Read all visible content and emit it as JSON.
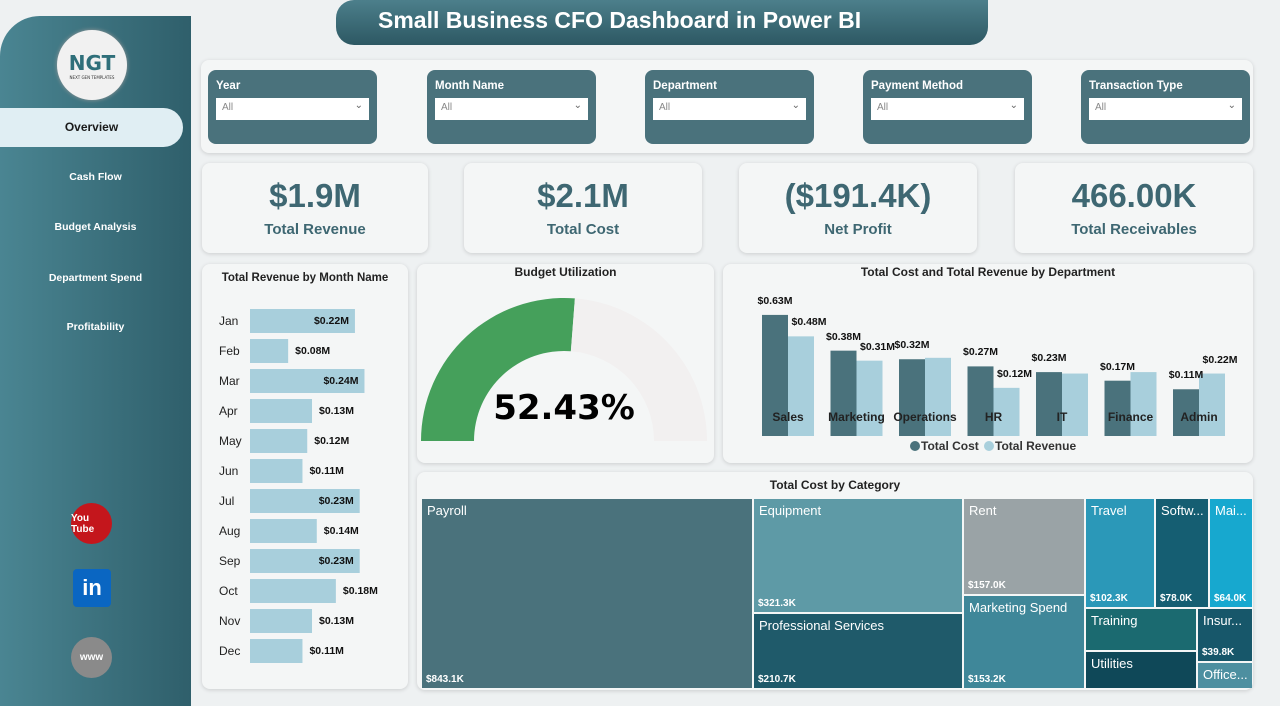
{
  "title": "Small Business CFO Dashboard in Power BI",
  "logo": {
    "text": "NGT",
    "subtext": "NEXT GEN TEMPLATES"
  },
  "nav": [
    {
      "label": "Overview",
      "active": true
    },
    {
      "label": "Cash Flow"
    },
    {
      "label": "Budget Analysis"
    },
    {
      "label": "Department Spend"
    },
    {
      "label": "Profitability"
    }
  ],
  "social": [
    {
      "icon": "youtube-icon",
      "text": "You Tube",
      "color": "#c4161c"
    },
    {
      "icon": "linkedin-icon",
      "text": "in",
      "color": "#0a66c2"
    },
    {
      "icon": "globe-icon",
      "text": "www",
      "color": "#8a8a8a"
    }
  ],
  "slicers": [
    {
      "label": "Year",
      "value": "All"
    },
    {
      "label": "Month Name",
      "value": "All"
    },
    {
      "label": "Department",
      "value": "All"
    },
    {
      "label": "Payment Method",
      "value": "All"
    },
    {
      "label": "Transaction Type",
      "value": "All"
    }
  ],
  "kpis": [
    {
      "value": "$1.9M",
      "label": "Total Revenue"
    },
    {
      "value": "$2.1M",
      "label": "Total Cost"
    },
    {
      "value": "($191.4K)",
      "label": "Net Profit"
    },
    {
      "value": "466.00K",
      "label": "Total Receivables"
    }
  ],
  "colors": {
    "cost": "#4a727c",
    "revenue": "#a8cfdc",
    "gauge_fill": "#45a05b",
    "gauge_bg": "#f2f0f0"
  },
  "chart_data": [
    {
      "type": "bar",
      "orientation": "horizontal",
      "title": "Total Revenue by Month Name",
      "categories": [
        "Jan",
        "Feb",
        "Mar",
        "Apr",
        "May",
        "Jun",
        "Jul",
        "Aug",
        "Sep",
        "Oct",
        "Nov",
        "Dec"
      ],
      "values": [
        0.22,
        0.08,
        0.24,
        0.13,
        0.12,
        0.11,
        0.23,
        0.14,
        0.23,
        0.18,
        0.13,
        0.11
      ],
      "labels": [
        "$0.22M",
        "$0.08M",
        "$0.24M",
        "$0.13M",
        "$0.12M",
        "$0.11M",
        "$0.23M",
        "$0.14M",
        "$0.23M",
        "$0.18M",
        "$0.13M",
        "$0.11M"
      ]
    },
    {
      "type": "gauge",
      "title": "Budget Utilization",
      "value": 52.43,
      "label": "52.43%"
    },
    {
      "type": "bar",
      "title": "Total Cost and Total Revenue by Department",
      "categories": [
        "Sales",
        "Marketing",
        "Operations",
        "HR",
        "IT",
        "Finance",
        "Admin"
      ],
      "series": [
        {
          "name": "Total Cost",
          "values": [
            0.63,
            0.38,
            0.32,
            0.27,
            0.23,
            0.17,
            0.11
          ],
          "labels": [
            "$0.63M",
            "$0.38M",
            "$0.32M",
            "$0.27M",
            "$0.23M",
            "$0.17M",
            "$0.11M"
          ]
        },
        {
          "name": "Total Revenue",
          "values": [
            0.48,
            0.31,
            0.33,
            0.12,
            0.22,
            0.23,
            0.22
          ],
          "labels": [
            "$0.48M",
            "$0.31M",
            "",
            "$0.12M",
            "",
            "",
            "$0.22M"
          ]
        }
      ],
      "legend": "bottom"
    },
    {
      "type": "treemap",
      "title": "Total Cost by Category",
      "items": [
        {
          "name": "Payroll",
          "label": "$843.1K",
          "value": 843.1,
          "color": "#4a727c"
        },
        {
          "name": "Equipment",
          "label": "$321.3K",
          "value": 321.3,
          "color": "#5e9aa6"
        },
        {
          "name": "Professional Services",
          "label": "$210.7K",
          "value": 210.7,
          "color": "#1f5a6a"
        },
        {
          "name": "Rent",
          "label": "$157.0K",
          "value": 157.0,
          "color": "#9aa3a6"
        },
        {
          "name": "Marketing Spend",
          "label": "$153.2K",
          "value": 153.2,
          "color": "#3f8799"
        },
        {
          "name": "Travel",
          "label": "$102.3K",
          "value": 102.3,
          "color": "#2b98b8"
        },
        {
          "name": "Softw...",
          "label": "$78.0K",
          "value": 78.0,
          "color": "#155e72"
        },
        {
          "name": "Mai...",
          "label": "$64.0K",
          "value": 64.0,
          "color": "#17a8cf"
        },
        {
          "name": "Training",
          "label": "",
          "color": "#1b6a70"
        },
        {
          "name": "Utilities",
          "label": "",
          "color": "#0f4858"
        },
        {
          "name": "Insur...",
          "label": "$39.8K",
          "value": 39.8,
          "color": "#17576a"
        },
        {
          "name": "Office...",
          "label": "",
          "color": "#4d8fa0"
        }
      ]
    }
  ]
}
